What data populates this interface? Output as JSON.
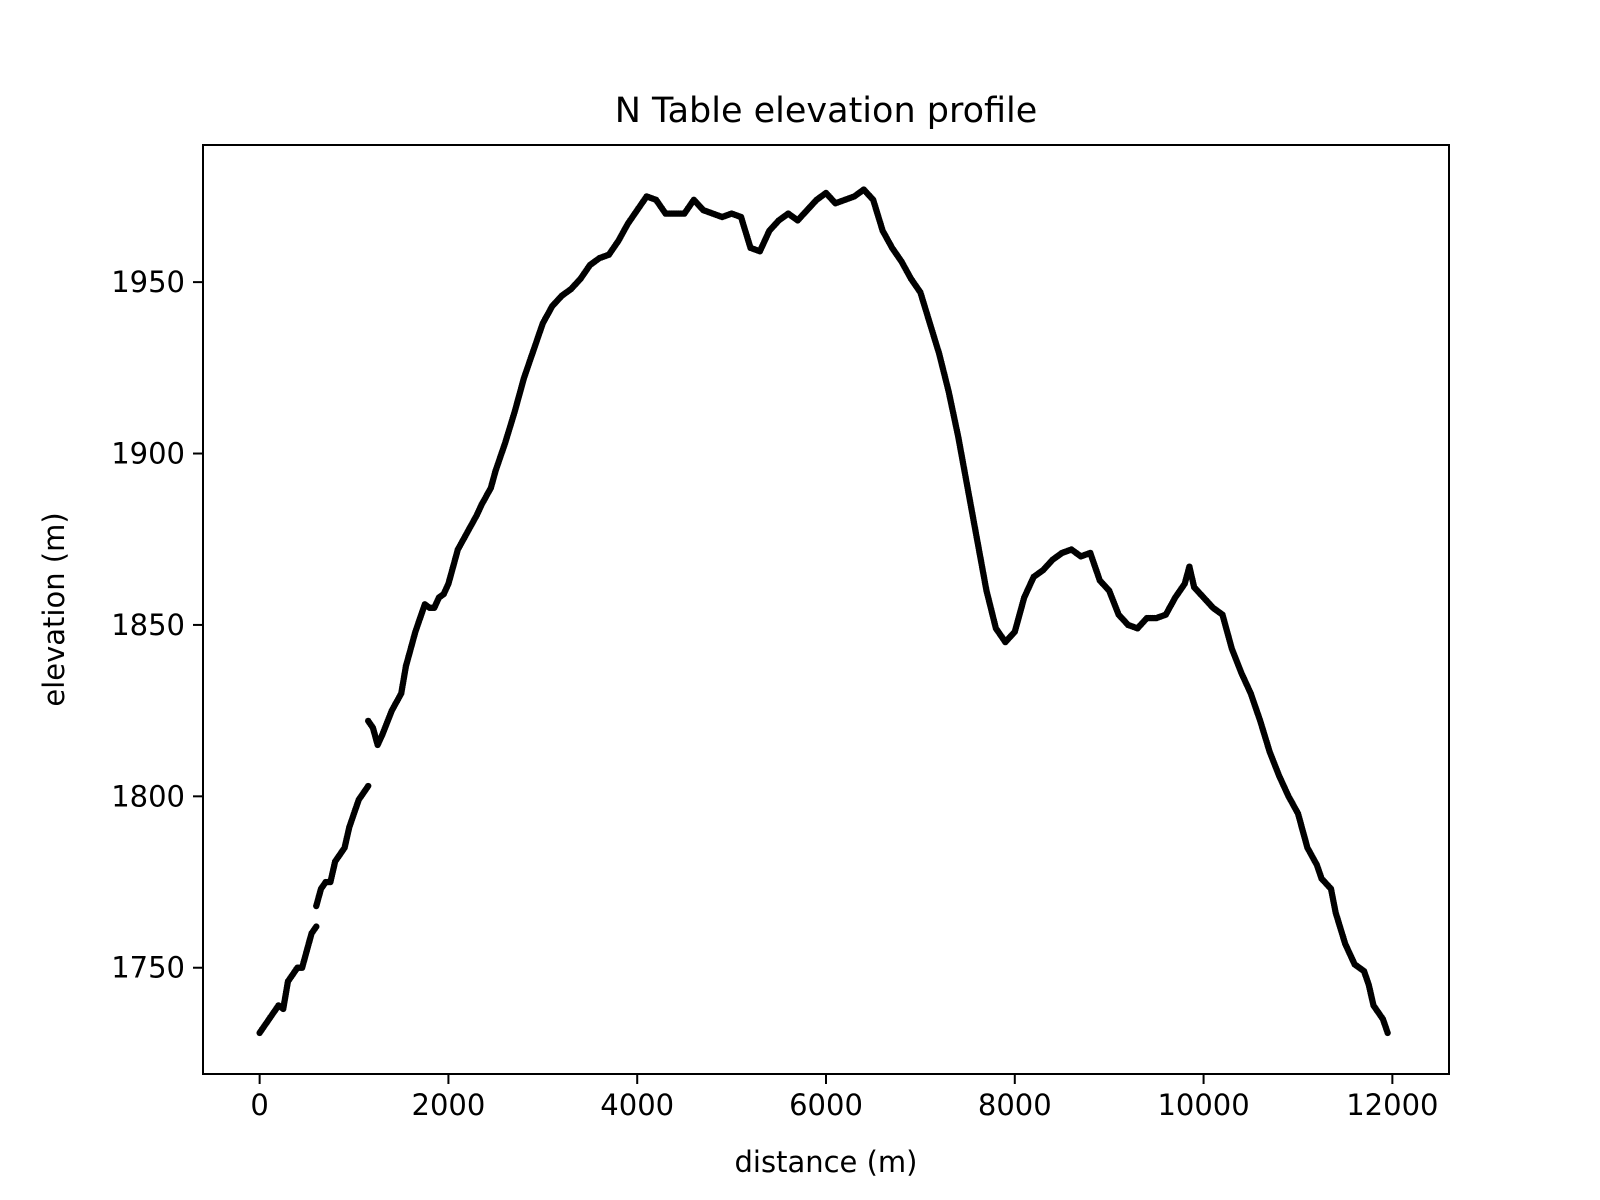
{
  "chart_data": {
    "type": "scatter",
    "title": "N Table elevation profile",
    "xlabel": "distance (m)",
    "ylabel": "elevation (m)",
    "xlim": [
      -600,
      12600
    ],
    "ylim": [
      1719,
      1990
    ],
    "xticks": [
      0,
      2000,
      4000,
      6000,
      8000,
      10000,
      12000
    ],
    "yticks": [
      1750,
      1800,
      1850,
      1900,
      1950
    ],
    "grid": false,
    "marker_color": "#000000",
    "series": [
      {
        "segments": [
          [
            [
              0,
              1731
            ],
            [
              100,
              1735
            ],
            [
              200,
              1739
            ],
            [
              250,
              1738
            ],
            [
              300,
              1746
            ],
            [
              400,
              1750
            ],
            [
              450,
              1750
            ],
            [
              500,
              1755
            ],
            [
              550,
              1760
            ],
            [
              600,
              1762
            ]
          ],
          [
            [
              600,
              1768
            ],
            [
              650,
              1773
            ],
            [
              700,
              1775
            ],
            [
              750,
              1775
            ],
            [
              800,
              1781
            ],
            [
              900,
              1785
            ],
            [
              950,
              1791
            ],
            [
              1000,
              1795
            ],
            [
              1050,
              1799
            ],
            [
              1100,
              1801
            ],
            [
              1150,
              1803
            ]
          ],
          [
            [
              1150,
              1822
            ],
            [
              1200,
              1820
            ],
            [
              1250,
              1815
            ],
            [
              1300,
              1818
            ],
            [
              1400,
              1825
            ],
            [
              1500,
              1830
            ],
            [
              1550,
              1838
            ],
            [
              1600,
              1843
            ],
            [
              1650,
              1848
            ],
            [
              1700,
              1852
            ],
            [
              1750,
              1856
            ],
            [
              1800,
              1855
            ],
            [
              1850,
              1855
            ],
            [
              1900,
              1858
            ],
            [
              1950,
              1859
            ],
            [
              2000,
              1862
            ],
            [
              2050,
              1867
            ],
            [
              2100,
              1872
            ],
            [
              2200,
              1877
            ],
            [
              2300,
              1882
            ],
            [
              2350,
              1885
            ],
            [
              2450,
              1890
            ],
            [
              2500,
              1895
            ],
            [
              2600,
              1903
            ],
            [
              2700,
              1912
            ],
            [
              2800,
              1922
            ],
            [
              2900,
              1930
            ],
            [
              3000,
              1938
            ],
            [
              3100,
              1943
            ],
            [
              3200,
              1946
            ],
            [
              3300,
              1948
            ],
            [
              3400,
              1951
            ],
            [
              3500,
              1955
            ],
            [
              3600,
              1957
            ],
            [
              3700,
              1958
            ],
            [
              3800,
              1962
            ],
            [
              3900,
              1967
            ],
            [
              4000,
              1971
            ],
            [
              4100,
              1975
            ],
            [
              4200,
              1974
            ],
            [
              4300,
              1970
            ],
            [
              4400,
              1970
            ],
            [
              4500,
              1970
            ],
            [
              4600,
              1974
            ],
            [
              4700,
              1971
            ],
            [
              4800,
              1970
            ],
            [
              4900,
              1969
            ],
            [
              5000,
              1970
            ],
            [
              5100,
              1969
            ],
            [
              5200,
              1960
            ],
            [
              5300,
              1959
            ],
            [
              5400,
              1965
            ],
            [
              5500,
              1968
            ],
            [
              5600,
              1970
            ],
            [
              5700,
              1968
            ],
            [
              5800,
              1971
            ],
            [
              5900,
              1974
            ],
            [
              6000,
              1976
            ],
            [
              6100,
              1973
            ],
            [
              6200,
              1974
            ],
            [
              6300,
              1975
            ],
            [
              6400,
              1977
            ],
            [
              6500,
              1974
            ],
            [
              6600,
              1965
            ],
            [
              6700,
              1960
            ],
            [
              6800,
              1956
            ],
            [
              6900,
              1951
            ],
            [
              7000,
              1947
            ],
            [
              7100,
              1938
            ],
            [
              7200,
              1929
            ],
            [
              7300,
              1918
            ],
            [
              7400,
              1905
            ],
            [
              7500,
              1890
            ],
            [
              7600,
              1875
            ],
            [
              7700,
              1860
            ],
            [
              7800,
              1849
            ],
            [
              7900,
              1845
            ],
            [
              8000,
              1848
            ],
            [
              8100,
              1858
            ],
            [
              8200,
              1864
            ],
            [
              8300,
              1866
            ],
            [
              8400,
              1869
            ],
            [
              8500,
              1871
            ],
            [
              8600,
              1872
            ],
            [
              8700,
              1870
            ],
            [
              8800,
              1871
            ],
            [
              8900,
              1863
            ],
            [
              9000,
              1860
            ],
            [
              9100,
              1853
            ],
            [
              9200,
              1850
            ],
            [
              9300,
              1849
            ],
            [
              9400,
              1852
            ],
            [
              9500,
              1852
            ],
            [
              9600,
              1853
            ],
            [
              9700,
              1858
            ],
            [
              9800,
              1862
            ],
            [
              9850,
              1867
            ],
            [
              9900,
              1861
            ],
            [
              10000,
              1858
            ],
            [
              10100,
              1855
            ],
            [
              10200,
              1853
            ],
            [
              10300,
              1843
            ],
            [
              10400,
              1836
            ],
            [
              10500,
              1830
            ],
            [
              10600,
              1822
            ],
            [
              10700,
              1813
            ],
            [
              10800,
              1806
            ],
            [
              10900,
              1800
            ],
            [
              11000,
              1795
            ],
            [
              11100,
              1785
            ],
            [
              11200,
              1780
            ],
            [
              11250,
              1776
            ],
            [
              11350,
              1773
            ],
            [
              11400,
              1766
            ],
            [
              11500,
              1757
            ],
            [
              11600,
              1751
            ],
            [
              11700,
              1749
            ],
            [
              11750,
              1745
            ],
            [
              11800,
              1739
            ],
            [
              11900,
              1735
            ],
            [
              11950,
              1731
            ]
          ]
        ]
      }
    ]
  }
}
